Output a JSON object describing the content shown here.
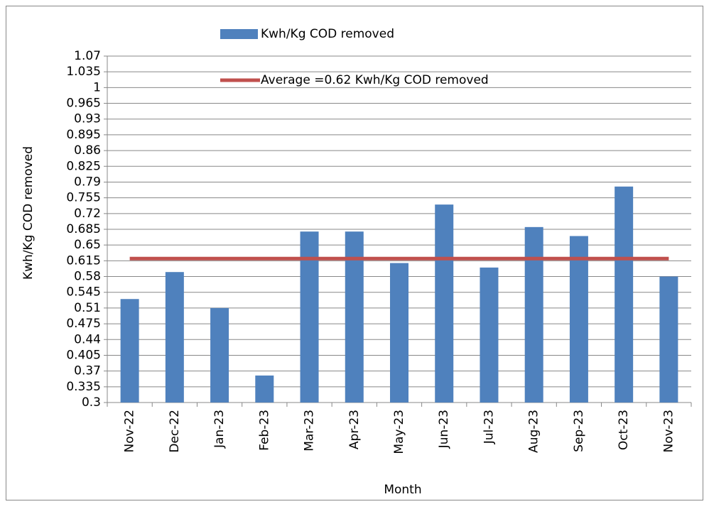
{
  "chart_data": {
    "type": "bar",
    "x_label": "Month",
    "y_label": "Kwh/Kg COD removed",
    "categories": [
      "Nov-22",
      "Dec-22",
      "Jan-23",
      "Feb-23",
      "Mar-23",
      "Apr-23",
      "May-23",
      "Jun-23",
      "Jul-23",
      "Aug-23",
      "Sep-23",
      "Oct-23",
      "Nov-23"
    ],
    "series": [
      {
        "name": "Kwh/Kg COD removed",
        "type": "bar",
        "color": "#4f81bd",
        "values": [
          0.53,
          0.59,
          0.51,
          0.36,
          0.68,
          0.68,
          0.61,
          0.74,
          0.6,
          0.69,
          0.67,
          0.78,
          0.58
        ]
      },
      {
        "name": "Average =0.62 Kwh/Kg COD removed",
        "type": "line",
        "color": "#c0504d",
        "values": [
          0.62,
          0.62,
          0.62,
          0.62,
          0.62,
          0.62,
          0.62,
          0.62,
          0.62,
          0.62,
          0.62,
          0.62,
          0.62
        ]
      }
    ],
    "ylim": [
      0.3,
      1.07
    ],
    "yticks": [
      0.3,
      0.335,
      0.37,
      0.405,
      0.44,
      0.475,
      0.51,
      0.545,
      0.58,
      0.615,
      0.65,
      0.685,
      0.72,
      0.755,
      0.79,
      0.825,
      0.86,
      0.895,
      0.93,
      0.965,
      1,
      1.035,
      1.07
    ],
    "grid": true
  }
}
